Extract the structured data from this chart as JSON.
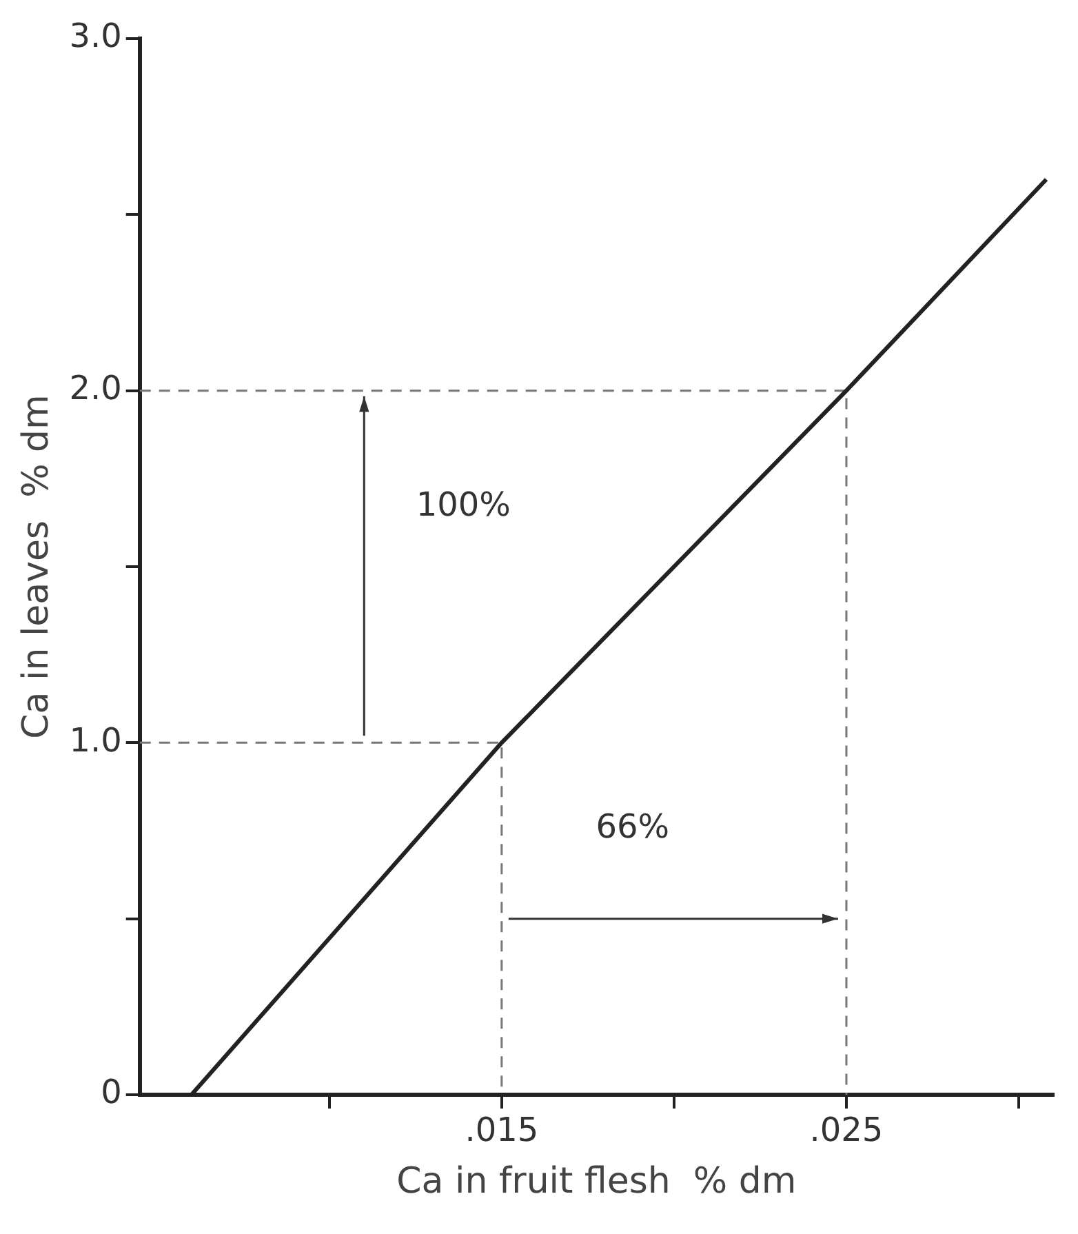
{
  "chart_data": {
    "type": "line",
    "xlabel": "Ca in fruit flesh  % dm",
    "ylabel": "Ca in leaves  % dm",
    "xlim": [
      0.0045,
      0.031
    ],
    "ylim": [
      0,
      3.0
    ],
    "xticks": [
      {
        "value": 0.01,
        "label": null
      },
      {
        "value": 0.015,
        "label": ".015"
      },
      {
        "value": 0.02,
        "label": null
      },
      {
        "value": 0.025,
        "label": ".025"
      },
      {
        "value": 0.03,
        "label": null
      }
    ],
    "yticks": [
      0,
      {
        "value": 0.5,
        "label": null
      },
      {
        "value": 1.0,
        "label": "1.0"
      },
      {
        "value": 1.5,
        "label": null
      },
      {
        "value": 2.0,
        "label": "2.0"
      },
      {
        "value": 2.5,
        "label": null
      },
      {
        "value": 3.0,
        "label": "3.0"
      }
    ],
    "series": [
      {
        "color": "#222222",
        "x": [
          0.006,
          0.015,
          0.025,
          0.0308
        ],
        "values": [
          0,
          1.0,
          2.0,
          2.6
        ]
      },
      {
        "color": "#777777",
        "line_style": "dashed",
        "x": [
          0.0045,
          0.025,
          0.025
        ],
        "values": [
          2.0,
          2.0,
          0
        ]
      },
      {
        "color": "#777777",
        "line_style": "dashed",
        "x": [
          0.0045,
          0.015,
          0.015
        ],
        "values": [
          1.0,
          1.0,
          0
        ]
      }
    ],
    "annotations": [
      "100%",
      "66%"
    ],
    "grid": false,
    "legend": false,
    "marker": "none"
  }
}
